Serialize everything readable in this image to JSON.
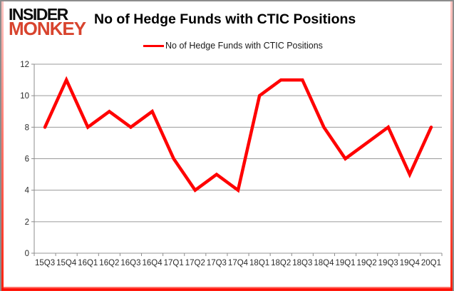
{
  "brand": {
    "line1": "INSIDER",
    "line2": "MONKEY",
    "line1_color": "#0d0d0d",
    "line2_color": "#d8442e"
  },
  "header": {
    "title": "No of Hedge Funds with CTIC Positions"
  },
  "legend": {
    "label": "No of Hedge Funds with CTIC Positions",
    "swatch_color": "#ff0000"
  },
  "chart_data": {
    "type": "line",
    "title": "No of Hedge Funds with CTIC Positions",
    "series_name": "No of Hedge Funds with CTIC Positions",
    "categories": [
      "15Q3",
      "15Q4",
      "16Q1",
      "16Q2",
      "16Q3",
      "16Q4",
      "17Q1",
      "17Q2",
      "17Q3",
      "17Q4",
      "18Q1",
      "18Q2",
      "18Q3",
      "18Q4",
      "19Q1",
      "19Q2",
      "19Q3",
      "19Q4",
      "20Q1"
    ],
    "values": [
      8,
      11,
      8,
      9,
      8,
      9,
      6,
      4,
      5,
      4,
      10,
      11,
      11,
      8,
      6,
      7,
      8,
      5,
      8
    ],
    "ylim": [
      0,
      12
    ],
    "ytick_step": 2,
    "yticks": [
      0,
      2,
      4,
      6,
      8,
      10,
      12
    ],
    "grid": true,
    "legend_position": "top",
    "line_color": "#ff0000",
    "gridline_color": "#9a9a9a",
    "axis_color": "#8c8c8c",
    "label_color": "#2b2b2b"
  }
}
